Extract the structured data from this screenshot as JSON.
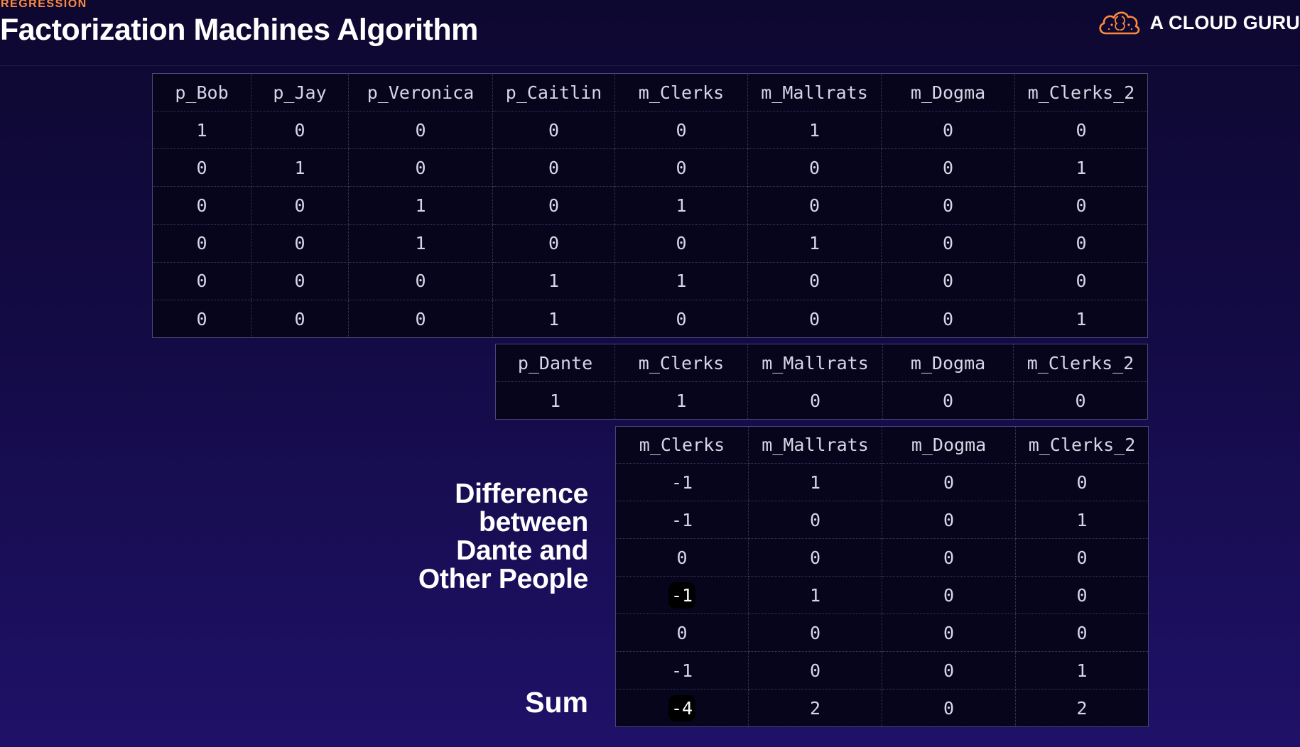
{
  "header": {
    "section": "REGRESSION",
    "title": "Factorization Machines Algorithm",
    "brand": "A CLOUD GURU",
    "brand_icon": "cloud-brain-icon"
  },
  "people_table": {
    "columns": [
      "p_Bob",
      "p_Jay",
      "p_Veronica",
      "p_Caitlin",
      "m_Clerks",
      "m_Mallrats",
      "m_Dogma",
      "m_Clerks_2"
    ],
    "rows": [
      [
        "1",
        "0",
        "0",
        "0",
        "0",
        "1",
        "0",
        "0"
      ],
      [
        "0",
        "1",
        "0",
        "0",
        "0",
        "0",
        "0",
        "1"
      ],
      [
        "0",
        "0",
        "1",
        "0",
        "1",
        "0",
        "0",
        "0"
      ],
      [
        "0",
        "0",
        "1",
        "0",
        "0",
        "1",
        "0",
        "0"
      ],
      [
        "0",
        "0",
        "0",
        "1",
        "1",
        "0",
        "0",
        "0"
      ],
      [
        "0",
        "0",
        "0",
        "1",
        "0",
        "0",
        "0",
        "1"
      ]
    ]
  },
  "dante_table": {
    "columns": [
      "p_Dante",
      "m_Clerks",
      "m_Mallrats",
      "m_Dogma",
      "m_Clerks_2"
    ],
    "rows": [
      [
        "1",
        "1",
        "0",
        "0",
        "0"
      ]
    ]
  },
  "diff_table": {
    "columns": [
      "m_Clerks",
      "m_Mallrats",
      "m_Dogma",
      "m_Clerks_2"
    ],
    "rows": [
      [
        "-1",
        "1",
        "0",
        "0"
      ],
      [
        "-1",
        "0",
        "0",
        "1"
      ],
      [
        "0",
        "0",
        "0",
        "0"
      ],
      [
        "-1",
        "1",
        "0",
        "0"
      ],
      [
        "0",
        "0",
        "0",
        "0"
      ],
      [
        "-1",
        "0",
        "0",
        "1"
      ]
    ],
    "sum": [
      "-4",
      "2",
      "0",
      "2"
    ],
    "highlighted": [
      "row4-col1",
      "sum-col1"
    ]
  },
  "labels": {
    "difference": "Difference\nbetween\nDante and\nOther People",
    "sum": "Sum"
  },
  "colors": {
    "accent": "#ff8a3d",
    "background_top": "#0d0830",
    "background_bottom": "#1f1168",
    "table_bg": "#06051c"
  }
}
